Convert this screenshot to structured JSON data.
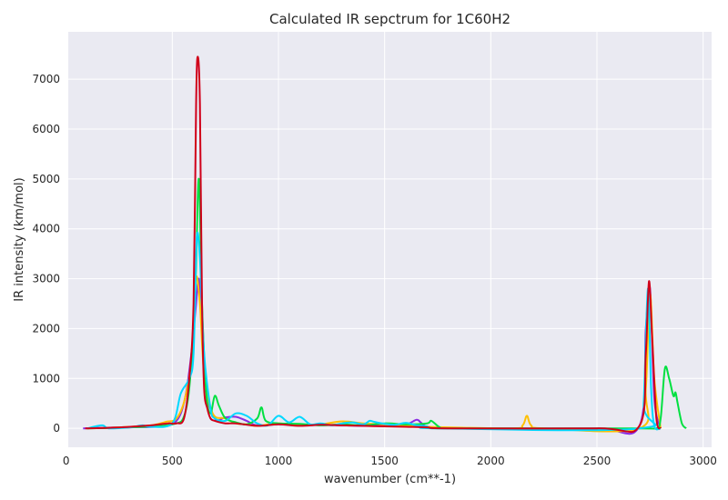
{
  "chart_data": {
    "type": "line",
    "title": "Calculated IR sepctrum for 1C60H2",
    "xlabel": "wavenumber (cm**-1)",
    "ylabel": "IR intensity (km/mol)",
    "xlim": [
      10,
      3040
    ],
    "ylim": [
      -380,
      7950
    ],
    "xticks": [
      0,
      500,
      1000,
      1500,
      2000,
      2500,
      3000
    ],
    "yticks": [
      0,
      1000,
      2000,
      3000,
      4000,
      5000,
      6000,
      7000
    ],
    "grid": true,
    "legend": "none",
    "series": [
      {
        "color": "#8a2be2",
        "x": [
          80,
          150,
          300,
          450,
          520,
          560,
          590,
          610,
          625,
          640,
          660,
          700,
          750,
          800,
          850,
          900,
          1000,
          1100,
          1200,
          1300,
          1400,
          1500,
          1600,
          1650,
          1670,
          1700,
          1800,
          2000,
          2500,
          2700,
          2730,
          2750,
          2770,
          2800
        ],
        "y": [
          0,
          10,
          20,
          40,
          150,
          600,
          1500,
          2400,
          3000,
          2200,
          800,
          200,
          220,
          230,
          150,
          60,
          80,
          60,
          70,
          60,
          50,
          60,
          80,
          170,
          120,
          30,
          0,
          0,
          0,
          50,
          2000,
          2800,
          600,
          0
        ]
      },
      {
        "color": "#ffc000",
        "x": [
          100,
          200,
          300,
          400,
          470,
          520,
          560,
          590,
          610,
          630,
          650,
          690,
          750,
          800,
          850,
          900,
          1000,
          1100,
          1200,
          1300,
          1400,
          1500,
          1600,
          1700,
          2100,
          2150,
          2170,
          2190,
          2250,
          2700,
          2730,
          2750,
          2770,
          2800
        ],
        "y": [
          0,
          10,
          30,
          60,
          130,
          200,
          600,
          1400,
          3000,
          2500,
          1100,
          300,
          200,
          100,
          80,
          50,
          100,
          70,
          80,
          140,
          100,
          80,
          60,
          30,
          0,
          60,
          250,
          60,
          0,
          0,
          800,
          2700,
          1000,
          0
        ]
      },
      {
        "color": "#00e040",
        "x": [
          100,
          300,
          500,
          560,
          590,
          610,
          625,
          640,
          660,
          680,
          700,
          720,
          750,
          800,
          850,
          900,
          920,
          940,
          1000,
          1100,
          1200,
          1300,
          1400,
          1500,
          1600,
          1700,
          1720,
          1760,
          1800,
          2700,
          2780,
          2800,
          2820,
          2840,
          2860,
          2870,
          2880,
          2900,
          2920
        ],
        "y": [
          0,
          20,
          80,
          300,
          1300,
          3000,
          5000,
          2500,
          700,
          300,
          650,
          450,
          200,
          120,
          80,
          200,
          420,
          150,
          100,
          90,
          60,
          80,
          60,
          100,
          80,
          100,
          150,
          20,
          0,
          0,
          0,
          200,
          1200,
          1000,
          650,
          720,
          500,
          100,
          0
        ]
      },
      {
        "color": "#00d8ff",
        "x": [
          100,
          170,
          200,
          300,
          360,
          400,
          500,
          540,
          580,
          600,
          615,
          630,
          650,
          680,
          700,
          750,
          800,
          850,
          900,
          950,
          1000,
          1050,
          1100,
          1150,
          1200,
          1250,
          1300,
          1350,
          1400,
          1430,
          1450,
          1500,
          1550,
          1600,
          1650,
          1700,
          1750,
          2700,
          2720,
          2740,
          2755,
          2770,
          2800
        ],
        "y": [
          0,
          60,
          0,
          20,
          60,
          30,
          100,
          700,
          1000,
          1500,
          3800,
          3400,
          1500,
          400,
          200,
          150,
          300,
          250,
          100,
          60,
          250,
          120,
          230,
          80,
          100,
          60,
          100,
          120,
          80,
          150,
          130,
          90,
          70,
          110,
          60,
          40,
          0,
          0,
          500,
          2800,
          800,
          50,
          0
        ]
      },
      {
        "color": "#d0001a",
        "x": [
          90,
          200,
          300,
          400,
          480,
          520,
          555,
          580,
          600,
          612,
          620,
          630,
          640,
          650,
          665,
          680,
          700,
          750,
          800,
          900,
          1000,
          1100,
          1200,
          1300,
          1400,
          1500,
          1600,
          1700,
          1800,
          2500,
          2700,
          2730,
          2745,
          2760,
          2780,
          2800
        ],
        "y": [
          0,
          10,
          30,
          60,
          100,
          100,
          200,
          1000,
          2500,
          6500,
          7450,
          6500,
          2500,
          800,
          400,
          200,
          150,
          100,
          100,
          50,
          80,
          50,
          70,
          60,
          50,
          40,
          30,
          20,
          0,
          0,
          50,
          1500,
          2950,
          1800,
          200,
          0
        ]
      }
    ]
  }
}
